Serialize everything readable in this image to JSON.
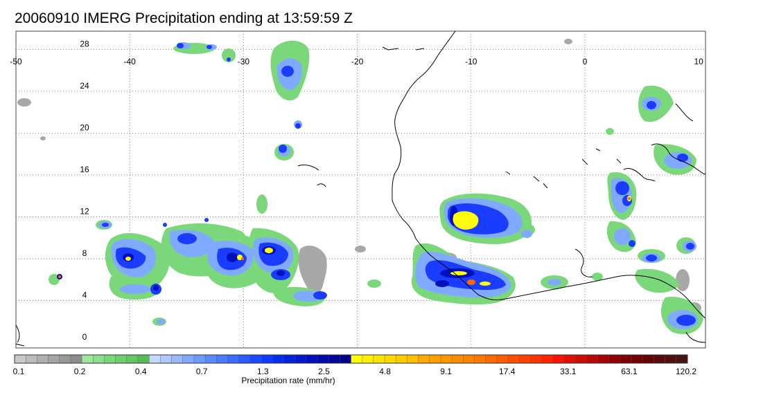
{
  "title": "20060910 IMERG Precipitation ending at 13:59:59 Z",
  "map": {
    "lon_ticks": [
      "-50",
      "-40",
      "-30",
      "-20",
      "-10",
      "0",
      "10"
    ],
    "lat_ticks": [
      "28",
      "24",
      "20",
      "16",
      "12",
      "8",
      "4",
      "0"
    ],
    "lon_range": [
      -50,
      10
    ],
    "lat_range": [
      -0.5,
      30
    ],
    "grid": "dotted"
  },
  "colorbar": {
    "label": "Precipitation rate (mm/hr)",
    "tick_labels": [
      "0.1",
      "0.2",
      "0.4",
      "0.7",
      "1.3",
      "2.5",
      "4.8",
      "9.1",
      "17.4",
      "33.1",
      "63.1",
      "120.2"
    ],
    "colors": [
      "#c8c8c8",
      "#bcbcbc",
      "#b0b0b0",
      "#a4a4a4",
      "#989898",
      "#8c8c8c",
      "#9ee89e",
      "#8ce08c",
      "#7ad87a",
      "#6ecf6e",
      "#62c662",
      "#56bd56",
      "#c8d8ff",
      "#b0c8ff",
      "#98b8ff",
      "#80aaff",
      "#6c9cff",
      "#5a8cff",
      "#4a7cff",
      "#3a6cff",
      "#2a5cff",
      "#1a4cff",
      "#0d3cff",
      "#0030ee",
      "#0024dd",
      "#0018cc",
      "#000fbb",
      "#000aaa",
      "#00069a",
      "#00048a",
      "#ffff00",
      "#fff000",
      "#ffe400",
      "#ffd800",
      "#ffcc00",
      "#ffc000",
      "#ffaa00",
      "#ffa000",
      "#ff9600",
      "#ff8c00",
      "#ff8200",
      "#ff7800",
      "#ff6a00",
      "#ff5c00",
      "#ff4e00",
      "#ff4000",
      "#ff3200",
      "#ff2400",
      "#f41400",
      "#e01000",
      "#cc0c00",
      "#b80800",
      "#a40400",
      "#900000",
      "#7c0000",
      "#700000",
      "#640000",
      "#5a0a0a",
      "#501010",
      "#461414"
    ]
  }
}
